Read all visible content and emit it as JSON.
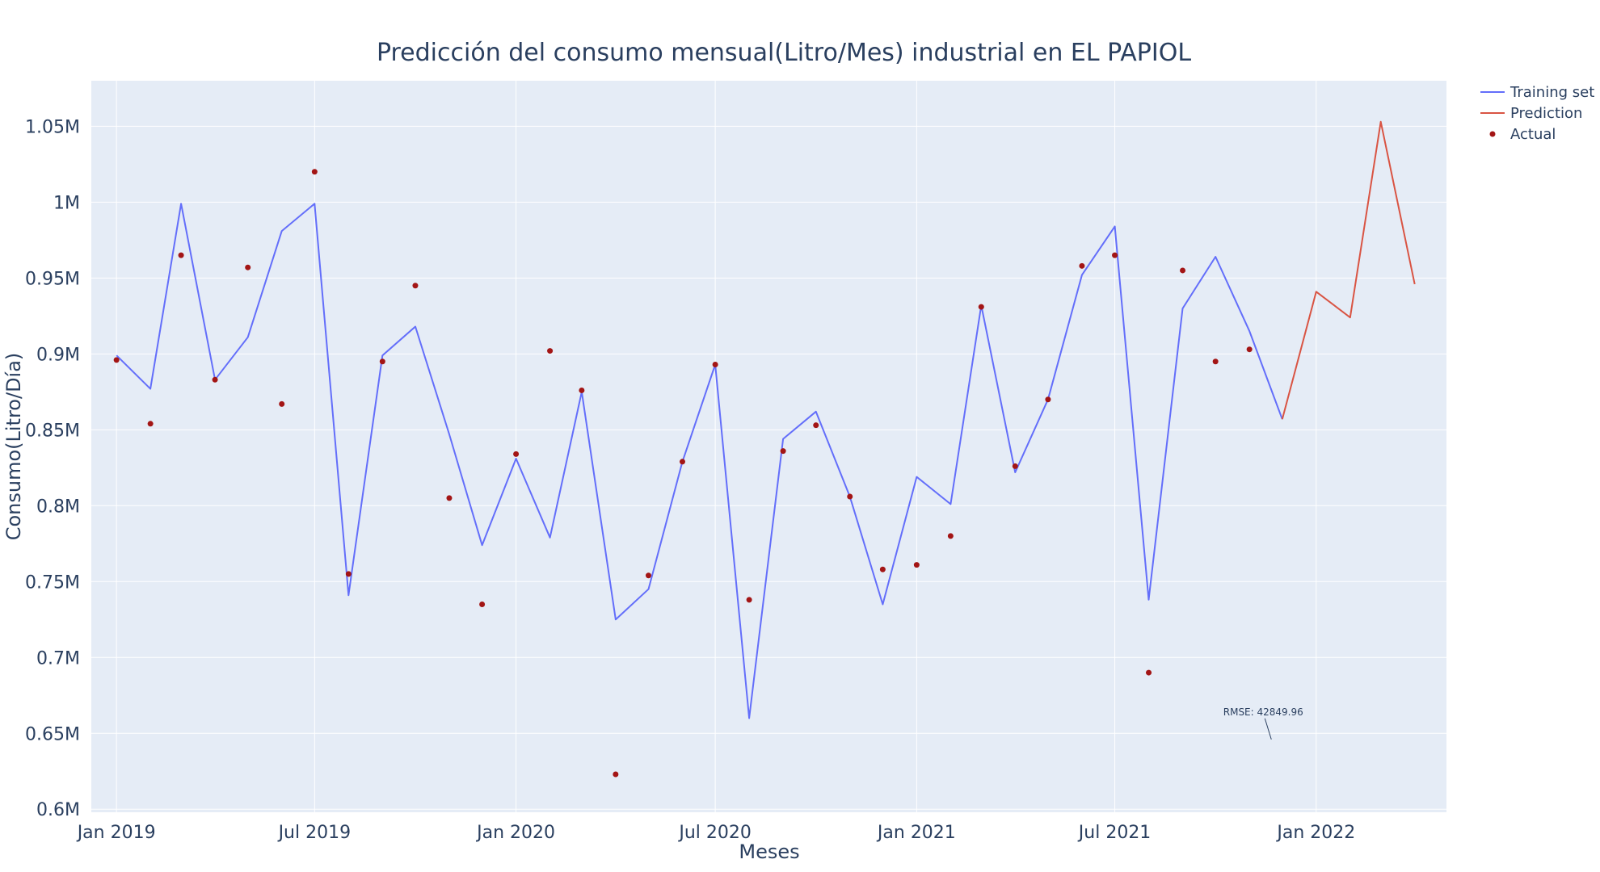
{
  "chart_data": {
    "type": "line",
    "title": "Predicción del consumo mensual(Litro/Mes) industrial en EL PAPIOL",
    "xlabel": "Meses",
    "ylabel": "Consumo(Litro/Día)",
    "ylim": [
      598000,
      1080000
    ],
    "xlim": [
      "2018-12-09",
      "2022-04-30"
    ],
    "grid": true,
    "legend_position": "top-right",
    "x_ticks": [
      {
        "date": "2019-01-01",
        "label": "Jan 2019"
      },
      {
        "date": "2019-07-01",
        "label": "Jul 2019"
      },
      {
        "date": "2020-01-01",
        "label": "Jan 2020"
      },
      {
        "date": "2020-07-01",
        "label": "Jul 2020"
      },
      {
        "date": "2021-01-01",
        "label": "Jan 2021"
      },
      {
        "date": "2021-07-01",
        "label": "Jul 2021"
      },
      {
        "date": "2022-01-01",
        "label": "Jan 2022"
      }
    ],
    "y_ticks": [
      {
        "value": 600000,
        "label": "0.6M"
      },
      {
        "value": 650000,
        "label": "0.65M"
      },
      {
        "value": 700000,
        "label": "0.7M"
      },
      {
        "value": 750000,
        "label": "0.75M"
      },
      {
        "value": 800000,
        "label": "0.8M"
      },
      {
        "value": 850000,
        "label": "0.85M"
      },
      {
        "value": 900000,
        "label": "0.9M"
      },
      {
        "value": 950000,
        "label": "0.95M"
      },
      {
        "value": 1000000,
        "label": "1M"
      },
      {
        "value": 1050000,
        "label": "1.05M"
      }
    ],
    "series": [
      {
        "name": "Training set",
        "mode": "line",
        "color": "#636efa",
        "x": [
          "2019-01-01",
          "2019-02-01",
          "2019-03-01",
          "2019-04-01",
          "2019-05-01",
          "2019-06-01",
          "2019-07-01",
          "2019-08-01",
          "2019-09-01",
          "2019-10-01",
          "2019-11-01",
          "2019-12-01",
          "2020-01-01",
          "2020-02-01",
          "2020-03-01",
          "2020-04-01",
          "2020-05-01",
          "2020-06-01",
          "2020-07-01",
          "2020-08-01",
          "2020-09-01",
          "2020-10-01",
          "2020-11-01",
          "2020-12-01",
          "2021-01-01",
          "2021-02-01",
          "2021-03-01",
          "2021-04-01",
          "2021-05-01",
          "2021-06-01",
          "2021-07-01",
          "2021-08-01",
          "2021-09-01",
          "2021-10-01",
          "2021-11-01",
          "2021-12-01"
        ],
        "y": [
          899000,
          877000,
          999000,
          883000,
          911000,
          981000,
          999000,
          741000,
          899000,
          918000,
          847000,
          774000,
          831000,
          779000,
          875000,
          725000,
          745000,
          829000,
          893000,
          660000,
          844000,
          862000,
          806000,
          735000,
          819000,
          801000,
          932000,
          822000,
          870000,
          952000,
          984000,
          738000,
          930000,
          964000,
          915000,
          857000
        ]
      },
      {
        "name": "Prediction",
        "mode": "line",
        "color": "#d95443",
        "x": [
          "2021-12-01",
          "2022-01-01",
          "2022-02-01",
          "2022-03-01",
          "2022-04-01"
        ],
        "y": [
          857000,
          941000,
          924000,
          1053000,
          946000
        ]
      },
      {
        "name": "Actual",
        "mode": "markers",
        "color": "#a31515",
        "x": [
          "2019-01-01",
          "2019-02-01",
          "2019-03-01",
          "2019-04-01",
          "2019-05-01",
          "2019-06-01",
          "2019-07-01",
          "2019-08-01",
          "2019-09-01",
          "2019-10-01",
          "2019-11-01",
          "2019-12-01",
          "2020-01-01",
          "2020-02-01",
          "2020-03-01",
          "2020-04-01",
          "2020-05-01",
          "2020-06-01",
          "2020-07-01",
          "2020-08-01",
          "2020-09-01",
          "2020-10-01",
          "2020-11-01",
          "2020-12-01",
          "2021-01-01",
          "2021-02-01",
          "2021-03-01",
          "2021-04-01",
          "2021-05-01",
          "2021-06-01",
          "2021-07-01",
          "2021-08-01",
          "2021-09-01",
          "2021-10-01",
          "2021-11-01"
        ],
        "y": [
          896000,
          854000,
          965000,
          883000,
          957000,
          867000,
          1020000,
          755000,
          895000,
          945000,
          805000,
          735000,
          834000,
          902000,
          876000,
          623000,
          754000,
          829000,
          893000,
          738000,
          836000,
          853000,
          806000,
          758000,
          761000,
          780000,
          931000,
          826000,
          870000,
          958000,
          965000,
          690000,
          955000,
          895000,
          903000
        ]
      }
    ],
    "annotations": [
      {
        "text": "RMSE: 42849.96",
        "x": "2021-11-21",
        "y": 646000
      }
    ]
  }
}
